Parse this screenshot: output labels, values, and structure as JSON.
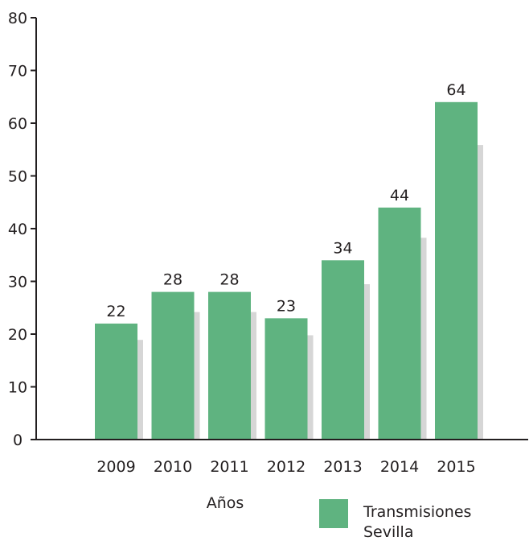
{
  "chart_data": {
    "type": "bar",
    "categories": [
      "2009",
      "2010",
      "2011",
      "2012",
      "2013",
      "2014",
      "2015"
    ],
    "series": [
      {
        "name": "Transmisiones Sevilla",
        "values": [
          22,
          28,
          28,
          23,
          34,
          44,
          64
        ]
      }
    ],
    "data_labels": [
      "22",
      "28",
      "28",
      "23",
      "34",
      "44",
      "64"
    ],
    "xlabel": "Años",
    "ylabel": "",
    "ylim": [
      0,
      80
    ],
    "yticks": [
      "0",
      "10",
      "20",
      "30",
      "40",
      "50",
      "60",
      "70",
      "80"
    ],
    "grid": false,
    "legend": {
      "position": "bottom-right",
      "lines": [
        "Transmisiones",
        "Sevilla"
      ]
    },
    "colors": {
      "bar": "#5fb380",
      "shadow": "#d6d6d6",
      "axis": "#231f20",
      "text": "#231f20"
    }
  }
}
